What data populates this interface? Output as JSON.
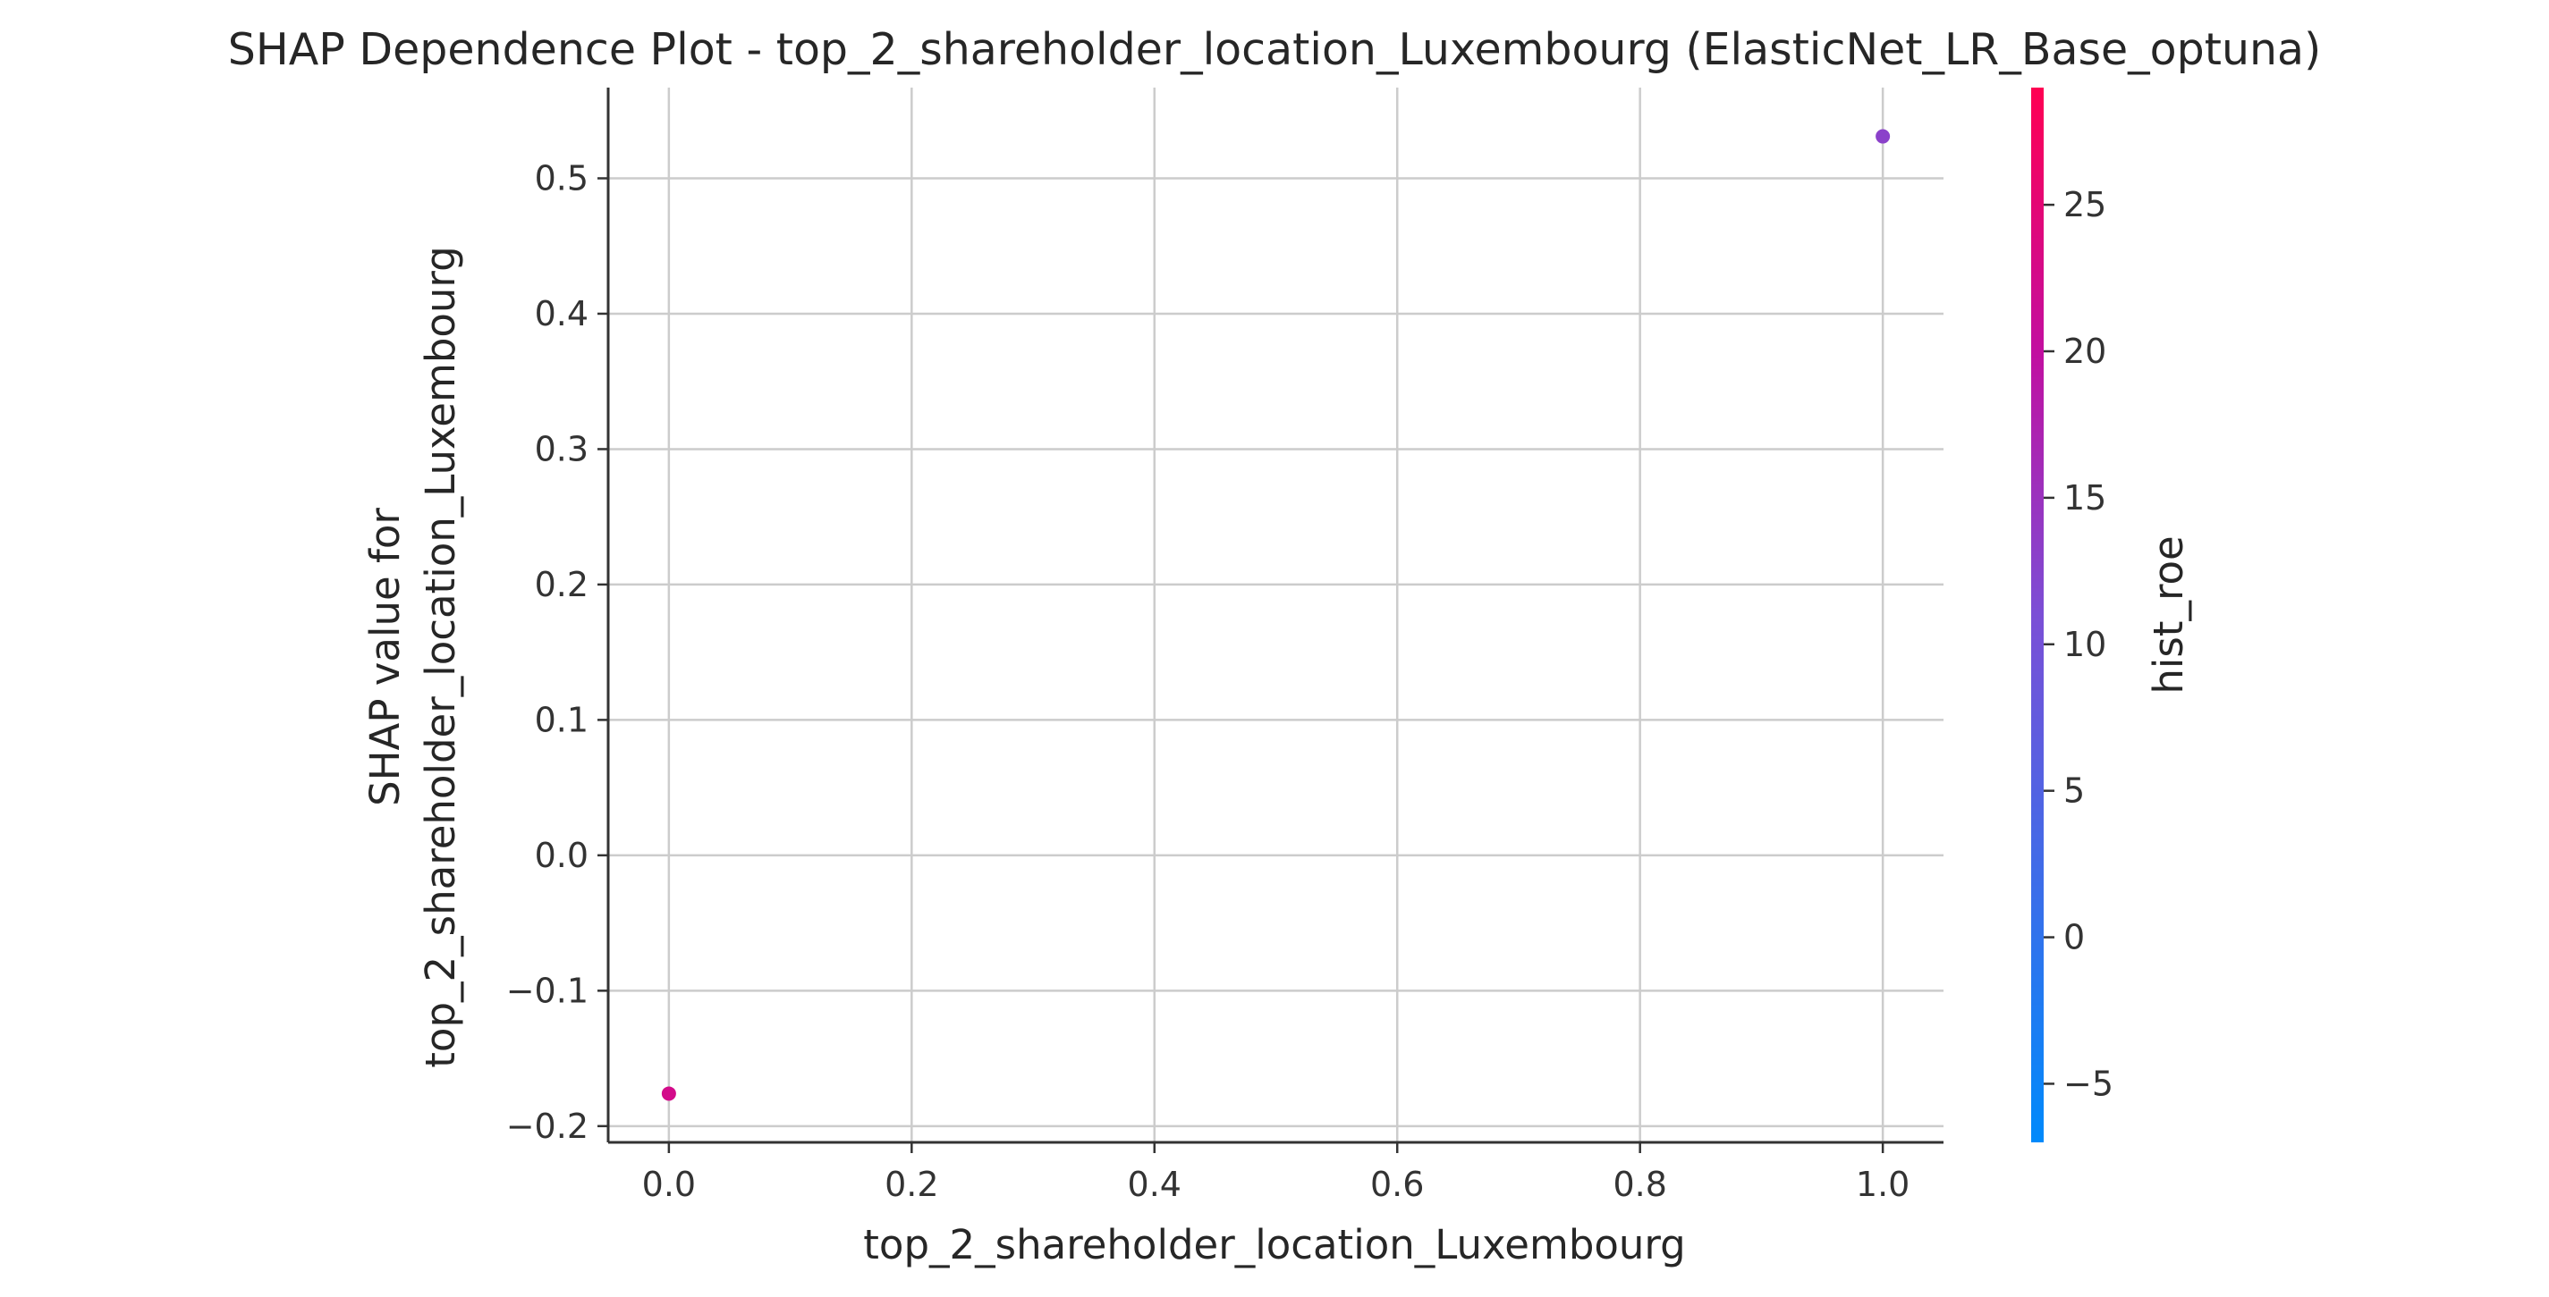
{
  "chart_data": {
    "type": "scatter",
    "title": "SHAP Dependence Plot - top_2_shareholder_location_Luxembourg (ElasticNet_LR_Base_optuna)",
    "xlabel": "top_2_shareholder_location_Luxembourg",
    "ylabel_lines": [
      "SHAP value for",
      "top_2_shareholder_location_Luxembourg"
    ],
    "xlim": [
      -0.05,
      1.05
    ],
    "ylim": [
      -0.212,
      0.567
    ],
    "xticks": [
      0.0,
      0.2,
      0.4,
      0.6,
      0.8,
      1.0
    ],
    "xtick_labels": [
      "0.0",
      "0.2",
      "0.4",
      "0.6",
      "0.8",
      "1.0"
    ],
    "yticks": [
      -0.2,
      -0.1,
      0.0,
      0.1,
      0.2,
      0.3,
      0.4,
      0.5
    ],
    "ytick_labels": [
      "−0.2",
      "−0.1",
      "0.0",
      "0.1",
      "0.2",
      "0.3",
      "0.4",
      "0.5"
    ],
    "grid": true,
    "points": [
      {
        "x": 0.0,
        "y": -0.176,
        "color_value": 22.5
      },
      {
        "x": 1.0,
        "y": 0.531,
        "color_value": 13.0
      }
    ],
    "colorbar": {
      "label": "hist_roe",
      "range": [
        -7,
        29
      ],
      "ticks": [
        -5,
        0,
        5,
        10,
        15,
        20,
        25
      ],
      "tick_labels": [
        "−5",
        "0",
        "5",
        "10",
        "15",
        "20",
        "25"
      ],
      "colors": [
        "#008afb",
        "#ff0052"
      ]
    }
  }
}
